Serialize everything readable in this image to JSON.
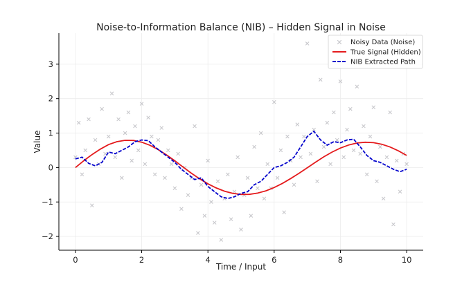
{
  "chart_data": {
    "type": "line",
    "title": "Noise-to-Information Balance (NIB) – Hidden Signal in Noise",
    "xlabel": "Time / Input",
    "ylabel": "Value",
    "xlim": [
      -0.5,
      10.5
    ],
    "ylim": [
      -2.4,
      3.9
    ],
    "xticks": [
      0,
      2,
      4,
      6,
      8,
      10
    ],
    "yticks": [
      -2,
      -1,
      0,
      1,
      2,
      3
    ],
    "grid": true,
    "legend_position": "top-right",
    "series": [
      {
        "name": "Noisy Data (Noise)",
        "kind": "scatter",
        "color": "#c8c8cc",
        "marker": "x",
        "x": [
          0.0,
          0.1,
          0.2,
          0.3,
          0.4,
          0.5,
          0.6,
          0.7,
          0.8,
          0.9,
          1.0,
          1.1,
          1.2,
          1.3,
          1.4,
          1.5,
          1.6,
          1.7,
          1.8,
          1.9,
          2.0,
          2.1,
          2.2,
          2.3,
          2.4,
          2.5,
          2.6,
          2.7,
          2.8,
          2.9,
          3.0,
          3.1,
          3.2,
          3.3,
          3.4,
          3.5,
          3.6,
          3.7,
          3.8,
          3.9,
          4.0,
          4.1,
          4.2,
          4.3,
          4.4,
          4.5,
          4.6,
          4.7,
          4.8,
          4.9,
          5.0,
          5.1,
          5.2,
          5.3,
          5.4,
          5.5,
          5.6,
          5.7,
          5.8,
          5.9,
          6.0,
          6.1,
          6.2,
          6.3,
          6.4,
          6.5,
          6.6,
          6.7,
          6.8,
          6.9,
          7.0,
          7.1,
          7.2,
          7.3,
          7.4,
          7.5,
          7.6,
          7.7,
          7.8,
          7.9,
          8.0,
          8.1,
          8.2,
          8.3,
          8.4,
          8.5,
          8.6,
          8.7,
          8.8,
          8.9,
          9.0,
          9.1,
          9.2,
          9.3,
          9.4,
          9.5,
          9.6,
          9.7,
          9.8,
          9.9,
          10.0
        ],
        "values": [
          0.3,
          1.3,
          -0.2,
          0.5,
          1.4,
          -1.1,
          0.8,
          0.1,
          1.7,
          0.4,
          0.9,
          2.15,
          0.3,
          1.4,
          -0.3,
          1.0,
          1.6,
          0.2,
          1.2,
          0.5,
          1.85,
          0.1,
          1.45,
          0.9,
          -0.2,
          0.8,
          1.15,
          -0.3,
          0.5,
          0.1,
          -0.6,
          0.4,
          -1.2,
          0.0,
          -0.8,
          -0.3,
          1.2,
          -1.9,
          -0.5,
          -1.4,
          0.2,
          -1.0,
          -1.6,
          -0.4,
          -2.1,
          -0.9,
          -0.2,
          -1.5,
          -0.7,
          0.3,
          -1.8,
          -0.8,
          -0.3,
          -1.4,
          0.6,
          -0.6,
          1.0,
          -0.9,
          0.1,
          -0.6,
          1.9,
          -0.3,
          0.5,
          -1.3,
          0.9,
          0.2,
          -0.5,
          1.25,
          0.3,
          0.9,
          3.6,
          0.4,
          1.1,
          -0.4,
          2.55,
          0.6,
          1.3,
          0.1,
          1.6,
          0.8,
          2.5,
          0.3,
          1.1,
          1.7,
          0.5,
          2.35,
          0.4,
          1.2,
          -0.2,
          0.9,
          1.75,
          -0.4,
          0.6,
          -0.9,
          0.3,
          1.6,
          -1.65,
          0.2,
          -0.7,
          0.4,
          0.1
        ]
      },
      {
        "name": "True Signal (Hidden)",
        "kind": "line",
        "color": "#e41a1c",
        "style": "solid",
        "x": [
          0.0,
          0.25,
          0.5,
          0.75,
          1.0,
          1.25,
          1.5,
          1.75,
          2.0,
          2.25,
          2.5,
          2.75,
          3.0,
          3.25,
          3.5,
          3.75,
          4.0,
          4.25,
          4.5,
          4.75,
          5.0,
          5.25,
          5.5,
          5.75,
          6.0,
          6.25,
          6.5,
          6.75,
          7.0,
          7.25,
          7.5,
          7.75,
          8.0,
          8.25,
          8.5,
          8.75,
          9.0,
          9.25,
          9.5,
          9.75,
          10.0
        ],
        "values": [
          0.0,
          0.196,
          0.375,
          0.533,
          0.665,
          0.751,
          0.791,
          0.786,
          0.735,
          0.645,
          0.52,
          0.367,
          0.196,
          0.014,
          -0.164,
          -0.328,
          -0.472,
          -0.593,
          -0.687,
          -0.75,
          -0.781,
          -0.778,
          -0.743,
          -0.676,
          -0.58,
          -0.46,
          -0.319,
          -0.166,
          -0.006,
          0.156,
          0.31,
          0.449,
          0.565,
          0.654,
          0.711,
          0.734,
          0.722,
          0.675,
          0.595,
          0.486,
          0.351
        ]
      },
      {
        "name": "NIB Extracted Path",
        "kind": "line",
        "color": "#0000cc",
        "style": "dashed",
        "x": [
          0.0,
          0.2,
          0.4,
          0.6,
          0.8,
          1.0,
          1.2,
          1.4,
          1.6,
          1.8,
          2.0,
          2.2,
          2.4,
          2.6,
          2.8,
          3.0,
          3.2,
          3.4,
          3.6,
          3.8,
          4.0,
          4.2,
          4.4,
          4.6,
          4.8,
          5.0,
          5.2,
          5.4,
          5.6,
          5.8,
          6.0,
          6.2,
          6.4,
          6.6,
          6.8,
          7.0,
          7.2,
          7.4,
          7.6,
          7.8,
          8.0,
          8.2,
          8.4,
          8.6,
          8.8,
          9.0,
          9.2,
          9.4,
          9.6,
          9.8,
          10.0
        ],
        "values": [
          0.25,
          0.3,
          0.12,
          0.05,
          0.15,
          0.45,
          0.4,
          0.5,
          0.6,
          0.75,
          0.8,
          0.78,
          0.6,
          0.45,
          0.3,
          0.15,
          -0.05,
          -0.2,
          -0.35,
          -0.3,
          -0.55,
          -0.7,
          -0.85,
          -0.9,
          -0.85,
          -0.75,
          -0.7,
          -0.5,
          -0.4,
          -0.2,
          0.0,
          0.05,
          0.15,
          0.3,
          0.6,
          0.9,
          1.05,
          0.8,
          0.65,
          0.75,
          0.72,
          0.8,
          0.82,
          0.6,
          0.35,
          0.2,
          0.15,
          0.05,
          -0.05,
          -0.12,
          -0.05
        ]
      }
    ]
  }
}
